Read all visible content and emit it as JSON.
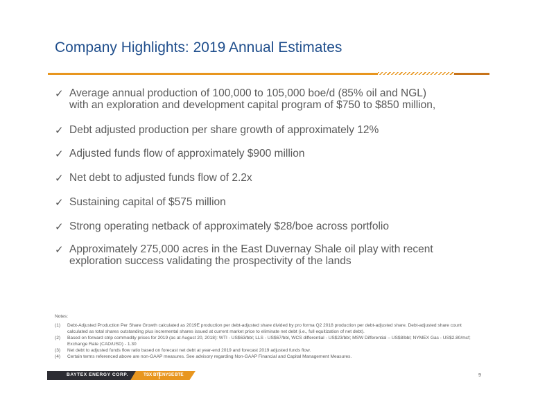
{
  "slide": {
    "title": "Company Highlights: 2019 Annual Estimates",
    "bullets": [
      {
        "lines": [
          "Average annual production of 100,000 to 105,000 boe/d (85% oil and NGL)",
          "with an exploration and development capital program of $750 to $850 million,"
        ]
      },
      {
        "lines": [
          "Debt adjusted production per share growth of approximately 12%"
        ]
      },
      {
        "lines": [
          "Adjusted funds flow of approximately $900 million"
        ]
      },
      {
        "lines": [
          "Net debt to adjusted funds flow of 2.2x"
        ]
      },
      {
        "lines": [
          "Sustaining capital of $575 million"
        ]
      },
      {
        "lines": [
          "Strong operating netback of approximately $28/boe across portfolio"
        ]
      },
      {
        "lines": [
          "Approximately 275,000 acres in the East Duvernay Shale oil play with recent",
          "exploration success validating the prospectivity of the lands"
        ]
      }
    ],
    "check_glyph": "✓",
    "notes_title": "Notes:",
    "notes": [
      {
        "num": "(1)",
        "lines": [
          "Debt-Adjusted Production Per Share Growth calculated as 2019E production per debt-adjusted share divided by pro forma Q2 2018 production per debt-adjusted share. Debt-adjusted share count",
          "calculated as total shares outstanding plus incremental shares issued at current market price to eliminate net debt (i.e., full equitization of net debt)."
        ]
      },
      {
        "num": "(2)",
        "lines": [
          "Based on forward strip commodity prices for 2019 (as at August 20, 2018): WTI - US$63/bbl; LLS - US$67/bbl, WCS differential - US$23/bbl; MSW Differential – US$8/bbl; NYMEX Gas - US$2.80/mcf;",
          "Exchange Rate (CAD/USD) - 1.30"
        ]
      },
      {
        "num": "(3)",
        "lines": [
          "Net debt to adjusted funds flow ratio based on forecast net debt at year-end 2019 and forecast 2019 adjusted funds flow."
        ]
      },
      {
        "num": "(4)",
        "lines": [
          "Certain terms referenced above are non-GAAP measures. See advisory regarding Non-GAAP Financial and Capital Management Measures."
        ]
      }
    ],
    "footer": {
      "company": "BAYTEX ENERGY CORP.",
      "tsx_prefix": "TSX",
      "tsx_symbol": "BTE",
      "nyse_prefix": "NYSE",
      "nyse_symbol": "BTE"
    },
    "page_number": "9",
    "colors": {
      "title": "#1f4e8c",
      "accent": "#e8961f",
      "footer_dark": "#2d2d33",
      "body_text": "#595959"
    }
  }
}
